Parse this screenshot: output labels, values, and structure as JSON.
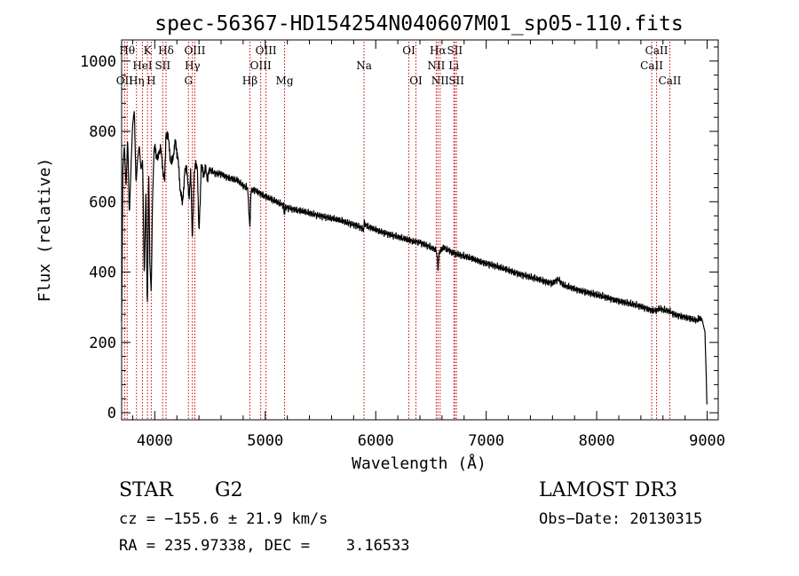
{
  "chart_data": {
    "type": "line",
    "title": "spec-56367-HD154254N040607M01_sp05-110.fits",
    "xlabel": "Wavelength (Å)",
    "ylabel": "Flux (relative)",
    "xlim": [
      3700,
      9100
    ],
    "ylim": [
      -20,
      1060
    ],
    "xticks": [
      4000,
      5000,
      6000,
      7000,
      8000,
      9000
    ],
    "yticks": [
      0,
      200,
      400,
      600,
      800,
      1000
    ],
    "series": [
      {
        "name": "flux",
        "x": [
          3700,
          3712,
          3725,
          3740,
          3755,
          3770,
          3785,
          3800,
          3815,
          3830,
          3845,
          3860,
          3875,
          3890,
          3905,
          3920,
          3933,
          3945,
          3955,
          3968,
          3980,
          3995,
          4010,
          4030,
          4050,
          4070,
          4090,
          4102,
          4115,
          4130,
          4150,
          4170,
          4190,
          4210,
          4230,
          4250,
          4270,
          4290,
          4310,
          4325,
          4340,
          4355,
          4370,
          4385,
          4400,
          4420,
          4440,
          4460,
          4480,
          4500,
          4550,
          4600,
          4650,
          4700,
          4750,
          4800,
          4840,
          4855,
          4861,
          4870,
          4900,
          4950,
          5000,
          5100,
          5167,
          5172,
          5180,
          5300,
          5500,
          5700,
          5850,
          5890,
          5896,
          5920,
          6000,
          6200,
          6300,
          6400,
          6500,
          6550,
          6560,
          6563,
          6566,
          6580,
          6620,
          6700,
          6800,
          7000,
          7200,
          7400,
          7600,
          7650,
          7700,
          7800,
          8000,
          8200,
          8400,
          8498,
          8542,
          8560,
          8662,
          8700,
          8800,
          8900,
          8950,
          8980,
          8990,
          9000
        ],
        "y": [
          260,
          700,
          760,
          640,
          780,
          560,
          700,
          820,
          860,
          650,
          720,
          760,
          690,
          720,
          380,
          640,
          280,
          700,
          430,
          340,
          610,
          760,
          740,
          720,
          760,
          700,
          660,
          800,
          790,
          760,
          700,
          740,
          770,
          720,
          640,
          590,
          680,
          700,
          600,
          700,
          480,
          680,
          700,
          710,
          500,
          700,
          680,
          690,
          670,
          690,
          680,
          680,
          670,
          665,
          660,
          645,
          640,
          560,
          520,
          630,
          635,
          625,
          615,
          600,
          590,
          560,
          585,
          575,
          560,
          545,
          530,
          520,
          540,
          530,
          520,
          500,
          490,
          485,
          470,
          460,
          430,
          380,
          430,
          460,
          470,
          455,
          445,
          425,
          405,
          385,
          368,
          380,
          362,
          352,
          335,
          318,
          302,
          292,
          290,
          296,
          288,
          280,
          272,
          262,
          270,
          230,
          120,
          0
        ]
      }
    ],
    "lines": [
      {
        "label": "OII",
        "x": 3727,
        "row": 3
      },
      {
        "label": "Hθ",
        "x": 3750,
        "row": 1
      },
      {
        "label": "Hη",
        "x": 3835,
        "row": 3
      },
      {
        "label": "HeI",
        "x": 3889,
        "row": 2
      },
      {
        "label": "K",
        "x": 3934,
        "row": 1
      },
      {
        "label": "H",
        "x": 3968,
        "row": 3
      },
      {
        "label": "SII",
        "x": 4072,
        "row": 2
      },
      {
        "label": "Hδ",
        "x": 4102,
        "row": 1
      },
      {
        "label": "G",
        "x": 4305,
        "row": 3
      },
      {
        "label": "Hγ",
        "x": 4341,
        "row": 2
      },
      {
        "label": "OIII",
        "x": 4363,
        "row": 1
      },
      {
        "label": "Hβ",
        "x": 4861,
        "row": 3
      },
      {
        "label": "OIII",
        "x": 4959,
        "row": 2
      },
      {
        "label": "OIII",
        "x": 5007,
        "row": 1
      },
      {
        "label": "Mg",
        "x": 5175,
        "row": 3
      },
      {
        "label": "Na",
        "x": 5894,
        "row": 2
      },
      {
        "label": "OI",
        "x": 6300,
        "row": 1
      },
      {
        "label": "OI",
        "x": 6364,
        "row": 3
      },
      {
        "label": "NII",
        "x": 6548,
        "row": 2
      },
      {
        "label": "Hα",
        "x": 6563,
        "row": 1
      },
      {
        "label": "NII",
        "x": 6583,
        "row": 3
      },
      {
        "label": "Li",
        "x": 6707,
        "row": 2
      },
      {
        "label": "SII",
        "x": 6716,
        "row": 1
      },
      {
        "label": "SII",
        "x": 6731,
        "row": 3
      },
      {
        "label": "CaII",
        "x": 8498,
        "row": 2
      },
      {
        "label": "CaII",
        "x": 8542,
        "row": 1
      },
      {
        "label": "CaII",
        "x": 8662,
        "row": 3
      }
    ]
  },
  "info": {
    "class": "STAR",
    "subclass": "G2",
    "survey": "LAMOST DR3",
    "redshift": "cz = −155.6 ± 21.9 km/s",
    "obs_date": "Obs−Date: 20130315",
    "coords": "RA = 235.97338, DEC =    3.16533"
  },
  "colors": {
    "background": "#ffffff",
    "ink": "#000000",
    "marker": "#cc0000"
  }
}
